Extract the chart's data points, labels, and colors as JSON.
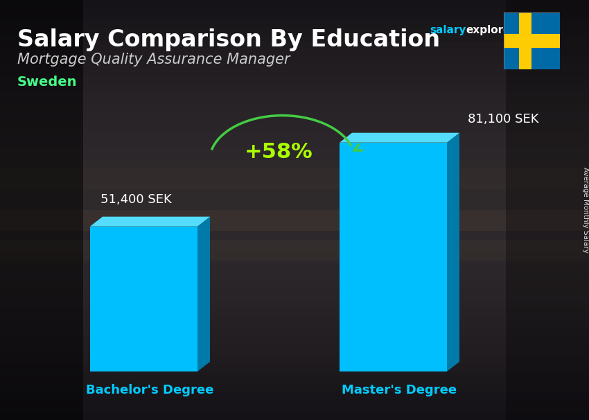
{
  "title": "Salary Comparison By Education",
  "subtitle": "Mortgage Quality Assurance Manager",
  "country": "Sweden",
  "categories": [
    "Bachelor's Degree",
    "Master's Degree"
  ],
  "values": [
    51400,
    81100
  ],
  "value_labels": [
    "51,400 SEK",
    "81,100 SEK"
  ],
  "bar_color_face": "#00BFFF",
  "bar_color_dark": "#007AA8",
  "bar_color_top": "#55DDFF",
  "pct_change": "+58%",
  "ylabel": "Average Monthly Salary",
  "pct_color": "#AAFF00",
  "arrow_color": "#44CC44",
  "value_label_color": "#FFFFFF",
  "xlabel_color": "#00CCFF",
  "country_color": "#44FF88",
  "bg_dark": "#1A1A22",
  "bg_mid": "#2A2A35"
}
